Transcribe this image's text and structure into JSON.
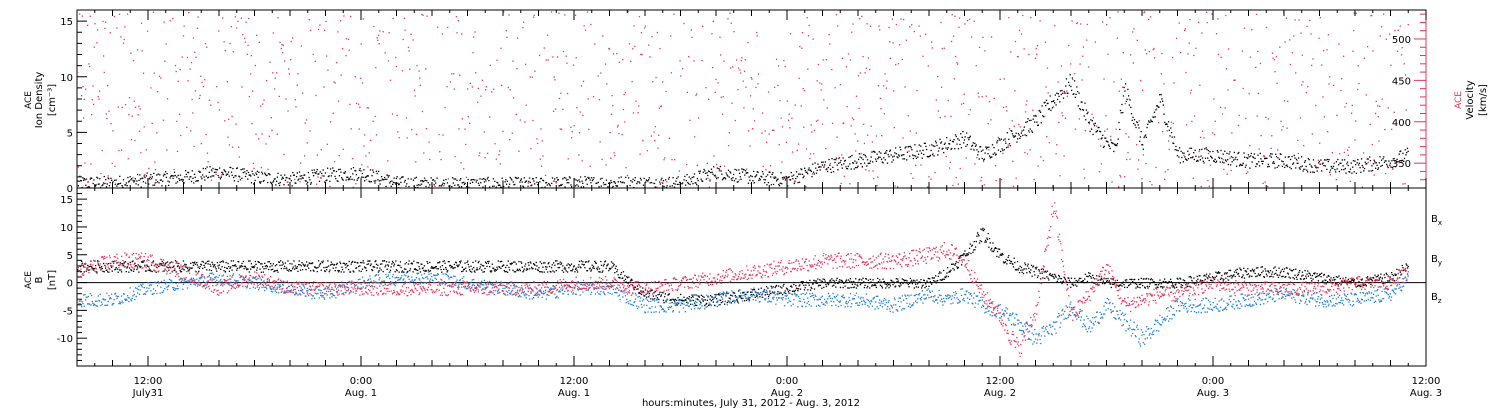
{
  "colors": {
    "density": "#000000",
    "velocity": "#e8325a",
    "bx": "#000000",
    "by": "#1e7fd6",
    "bz": "#e8325a",
    "axis": "#000000"
  },
  "chart_data": [
    {
      "type": "scatter",
      "panel": "top",
      "ylabel_left": [
        "ACE",
        "Ion Density",
        "[cm⁻³]"
      ],
      "ylabel_right": [
        "ACE",
        "Velocity",
        "[km/s]"
      ],
      "ylim_left": [
        0,
        16
      ],
      "yticks_left": [
        0,
        5,
        10,
        15
      ],
      "ylim_right": [
        320,
        535
      ],
      "yticks_right": [
        350,
        400,
        450,
        500
      ],
      "x_unit": "hours since 2012-07-31 00:00 UT",
      "xlim": [
        8,
        84
      ],
      "series": [
        {
          "axis": "left",
          "x": [
            8,
            10,
            12,
            14,
            16,
            18,
            20,
            22,
            24,
            26,
            28,
            30,
            32,
            34,
            36,
            38,
            40,
            42,
            44,
            46,
            48,
            50,
            52,
            54,
            56,
            57,
            58,
            59,
            60,
            61,
            62,
            63,
            64,
            65,
            66,
            66.5,
            67,
            68,
            69,
            70,
            72,
            74,
            76,
            78,
            80,
            82,
            83
          ],
          "y": [
            0.5,
            0.5,
            0.8,
            1.0,
            1.5,
            1.0,
            0.8,
            1.2,
            1.4,
            0.5,
            0.4,
            0.4,
            0.4,
            0.4,
            0.5,
            0.5,
            0.5,
            0.5,
            1.5,
            1.0,
            0.8,
            2.0,
            2.5,
            3.0,
            3.5,
            4.0,
            4.5,
            3.0,
            4.0,
            5.0,
            6.0,
            8.0,
            9.5,
            6.0,
            4.0,
            3.5,
            9.0,
            4.0,
            8.0,
            3.0,
            3.0,
            2.5,
            2.5,
            2.0,
            2.0,
            2.5,
            3.0
          ]
        },
        {
          "axis": "right",
          "x": [
            8,
            10,
            12,
            14,
            16,
            18,
            20,
            22,
            24,
            26,
            28,
            30,
            32,
            34,
            36,
            38,
            40,
            42,
            44,
            46,
            48,
            50,
            52,
            54,
            56,
            57,
            58,
            59,
            60,
            61,
            62,
            63,
            64,
            65,
            66,
            67,
            68,
            69,
            70,
            71,
            72,
            74,
            76,
            78,
            80,
            82,
            83
          ],
          "y": [
            420,
            418,
            415,
            416,
            412,
            418,
            416,
            412,
            410,
            425,
            440,
            442,
            440,
            435,
            432,
            430,
            426,
            425,
            425,
            420,
            400,
            395,
            390,
            395,
            400,
            405,
            410,
            400,
            420,
            430,
            455,
            465,
            462,
            460,
            460,
            458,
            460,
            462,
            475,
            480,
            475,
            470,
            470,
            470,
            468,
            462,
            455
          ]
        }
      ]
    },
    {
      "type": "scatter",
      "panel": "bottom",
      "ylabel_left": [
        "ACE",
        "B",
        "[nT]"
      ],
      "ylim": [
        -15,
        17
      ],
      "yticks": [
        -10,
        -5,
        0,
        5,
        10,
        15
      ],
      "x_unit": "hours since 2012-07-31 00:00 UT",
      "xlim": [
        8,
        84
      ],
      "xticks": [
        12,
        24,
        36,
        48,
        60,
        72,
        84
      ],
      "xtick_labels": [
        [
          "12:00",
          "July31"
        ],
        [
          "0:00",
          "Aug. 1"
        ],
        [
          "12:00",
          "Aug. 1"
        ],
        [
          "0:00",
          "Aug. 2"
        ],
        [
          "12:00",
          "Aug. 2"
        ],
        [
          "0:00",
          "Aug. 3"
        ],
        [
          "12:00",
          "Aug. 3"
        ]
      ],
      "xlabel": "hours:minutes, July 31, 2012 - Aug.  3, 2012",
      "legend": [
        "B",
        "B",
        "B"
      ],
      "legend_subscripts": [
        "x",
        "y",
        "z"
      ],
      "series": [
        {
          "name": "Bx",
          "x": [
            8,
            10,
            12,
            14,
            16,
            18,
            20,
            22,
            24,
            26,
            28,
            30,
            32,
            34,
            36,
            38,
            40,
            42,
            44,
            46,
            48,
            50,
            52,
            54,
            56,
            57,
            58,
            59,
            60,
            61,
            62,
            63,
            64,
            65,
            66,
            68,
            70,
            72,
            74,
            76,
            78,
            80,
            82,
            83
          ],
          "y": [
            3,
            3,
            3,
            3,
            3,
            3,
            3,
            3,
            3,
            3,
            3,
            3,
            3,
            3,
            3,
            3,
            -2,
            -3,
            -3,
            -2,
            -1,
            0,
            0,
            0,
            0,
            2,
            5,
            9,
            5,
            3,
            2,
            1,
            0,
            1,
            0,
            0,
            0,
            1,
            2,
            2,
            1,
            0,
            1,
            3
          ]
        },
        {
          "name": "By",
          "x": [
            8,
            10,
            12,
            14,
            16,
            18,
            20,
            22,
            24,
            26,
            28,
            30,
            32,
            34,
            36,
            38,
            40,
            42,
            44,
            46,
            48,
            50,
            52,
            54,
            56,
            57,
            58,
            59,
            60,
            61,
            62,
            63,
            64,
            65,
            66,
            67,
            68,
            69,
            70,
            72,
            74,
            76,
            78,
            80,
            82,
            83
          ],
          "y": [
            -3,
            -3,
            -1,
            0,
            1,
            0,
            -1,
            -2,
            0,
            1,
            1,
            0,
            -1,
            -2,
            -1,
            -1,
            -4,
            -4,
            -3,
            -2,
            -3,
            -3,
            -3,
            -4,
            -2,
            -3,
            -2,
            -4,
            -5,
            -7,
            -10,
            -8,
            -4,
            -8,
            -4,
            -7,
            -10,
            -7,
            -4,
            -4,
            -3,
            -2,
            -3,
            -3,
            -2,
            1
          ]
        },
        {
          "name": "Bz",
          "x": [
            8,
            10,
            12,
            14,
            16,
            18,
            20,
            22,
            24,
            26,
            28,
            30,
            32,
            34,
            36,
            38,
            40,
            42,
            44,
            46,
            48,
            50,
            52,
            54,
            56,
            57,
            58,
            59,
            60,
            61,
            62,
            63,
            64,
            65,
            66,
            67,
            68,
            69,
            70,
            72,
            74,
            76,
            78,
            80,
            82,
            83
          ],
          "y": [
            2,
            4,
            4,
            2,
            -1,
            1,
            -1,
            -1,
            -1,
            -1,
            -1,
            -1,
            -1,
            -1,
            0,
            0,
            -1,
            0,
            1,
            2,
            3,
            4,
            4,
            4,
            5,
            6,
            4,
            -2,
            -6,
            -12,
            -5,
            14,
            -6,
            -2,
            3,
            -4,
            -3,
            -2,
            -2,
            0,
            -1,
            -1,
            -1,
            0,
            0,
            2
          ]
        }
      ]
    }
  ]
}
